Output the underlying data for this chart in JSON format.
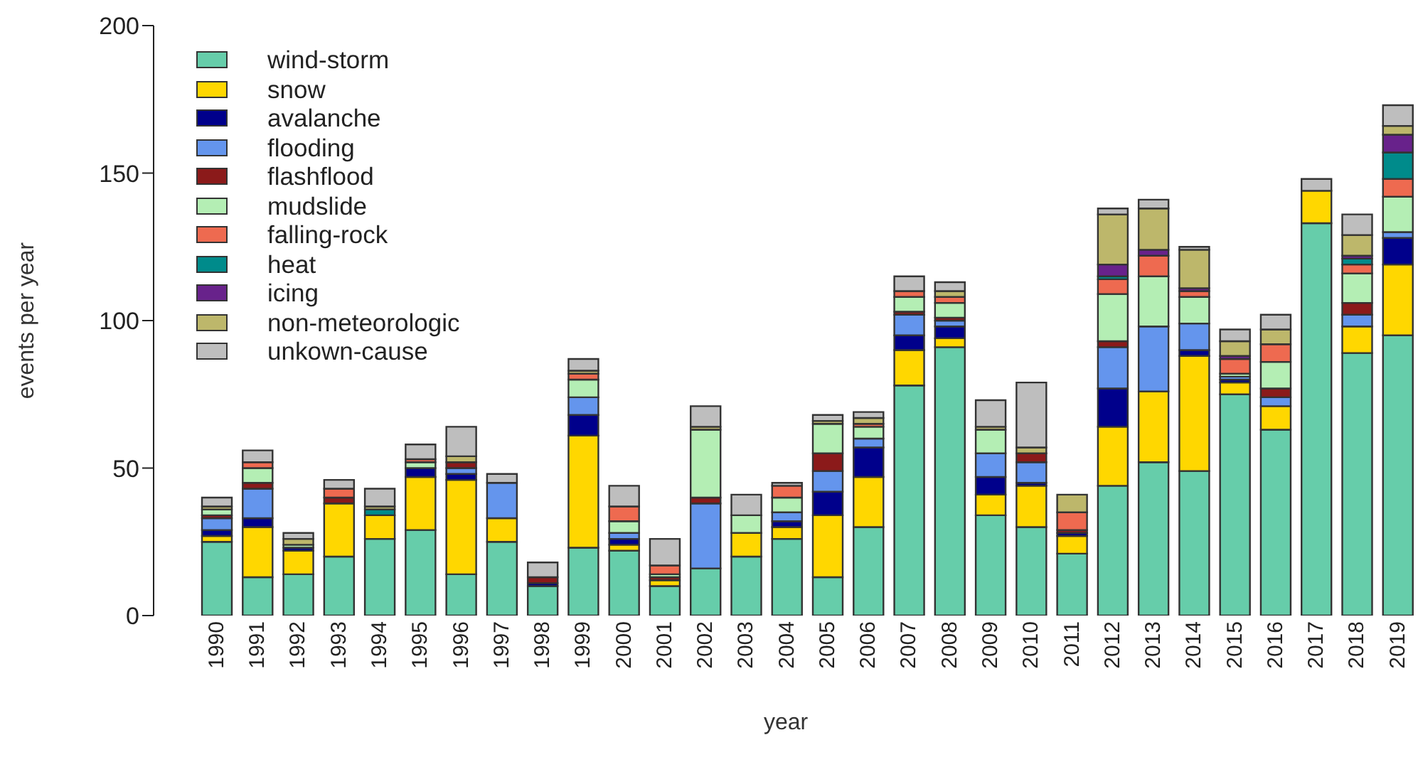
{
  "chart_data": {
    "type": "bar",
    "stacked": true,
    "xlabel": "year",
    "ylabel": "events per year",
    "categories": [
      "1990",
      "1991",
      "1992",
      "1993",
      "1994",
      "1995",
      "1996",
      "1997",
      "1998",
      "1999",
      "2000",
      "2001",
      "2002",
      "2003",
      "2004",
      "2005",
      "2006",
      "2007",
      "2008",
      "2009",
      "2010",
      "2011",
      "2012",
      "2013",
      "2014",
      "2015",
      "2016",
      "2017",
      "2018",
      "2019"
    ],
    "series": [
      {
        "name": "wind-storm",
        "color": "#66cdaa",
        "values": [
          25,
          13,
          14,
          20,
          26,
          29,
          14,
          25,
          10,
          23,
          22,
          10,
          16,
          20,
          26,
          13,
          30,
          78,
          91,
          34,
          30,
          21,
          44,
          52,
          49,
          75,
          63,
          133,
          89,
          95
        ]
      },
      {
        "name": "snow",
        "color": "#ffd700",
        "values": [
          2,
          17,
          8,
          18,
          8,
          18,
          32,
          8,
          0,
          38,
          2,
          2,
          0,
          8,
          4,
          21,
          17,
          12,
          3,
          7,
          14,
          6,
          20,
          24,
          39,
          4,
          8,
          11,
          9,
          24
        ]
      },
      {
        "name": "avalanche",
        "color": "#00008b",
        "values": [
          2,
          3,
          1,
          0,
          0,
          3,
          2,
          0,
          1,
          7,
          2,
          0,
          0,
          0,
          2,
          8,
          10,
          5,
          4,
          6,
          1,
          1,
          13,
          0,
          2,
          1,
          0,
          0,
          0,
          9
        ]
      },
      {
        "name": "flooding",
        "color": "#6495ed",
        "values": [
          4,
          10,
          0,
          0,
          0,
          0,
          2,
          12,
          0,
          6,
          2,
          0,
          22,
          0,
          3,
          7,
          3,
          7,
          2,
          8,
          7,
          0,
          14,
          22,
          9,
          1,
          3,
          0,
          4,
          2
        ]
      },
      {
        "name": "flashflood",
        "color": "#8b1a1a",
        "values": [
          1,
          2,
          0,
          2,
          0,
          0,
          2,
          0,
          2,
          0,
          0,
          1,
          2,
          0,
          0,
          6,
          0,
          1,
          1,
          0,
          3,
          1,
          2,
          0,
          0,
          0,
          3,
          0,
          4,
          0
        ]
      },
      {
        "name": "mudslide",
        "color": "#b4eeb4",
        "values": [
          2,
          5,
          1,
          0,
          0,
          2,
          0,
          0,
          0,
          6,
          4,
          1,
          23,
          6,
          5,
          10,
          4,
          5,
          5,
          8,
          0,
          0,
          16,
          17,
          9,
          1,
          9,
          0,
          10,
          12
        ]
      },
      {
        "name": "falling-rock",
        "color": "#ee6a50",
        "values": [
          0,
          2,
          0,
          3,
          0,
          1,
          0,
          0,
          0,
          2,
          5,
          3,
          0,
          0,
          4,
          0,
          1,
          2,
          2,
          0,
          0,
          6,
          5,
          7,
          2,
          5,
          6,
          0,
          3,
          6
        ]
      },
      {
        "name": "heat",
        "color": "#008b8b",
        "values": [
          0,
          0,
          0,
          0,
          2,
          0,
          0,
          0,
          0,
          0,
          0,
          0,
          0,
          0,
          0,
          0,
          0,
          0,
          0,
          0,
          0,
          0,
          1,
          0,
          0,
          0,
          0,
          0,
          2,
          9
        ]
      },
      {
        "name": "icing",
        "color": "#68228b",
        "values": [
          0,
          0,
          0,
          0,
          0,
          0,
          0,
          0,
          0,
          0,
          0,
          0,
          0,
          0,
          0,
          0,
          0,
          0,
          0,
          0,
          0,
          0,
          4,
          2,
          1,
          1,
          0,
          0,
          1,
          6
        ]
      },
      {
        "name": "non-meteorologic",
        "color": "#bdb76b",
        "values": [
          1,
          0,
          2,
          0,
          1,
          0,
          2,
          0,
          0,
          1,
          0,
          0,
          1,
          0,
          0,
          1,
          2,
          0,
          2,
          1,
          2,
          6,
          17,
          14,
          13,
          5,
          5,
          0,
          7,
          3
        ]
      },
      {
        "name": "unkown-cause",
        "color": "#bebebe",
        "values": [
          3,
          4,
          2,
          3,
          6,
          5,
          10,
          3,
          5,
          4,
          7,
          9,
          7,
          7,
          1,
          2,
          2,
          5,
          3,
          9,
          22,
          0,
          2,
          3,
          1,
          4,
          5,
          4,
          7,
          7
        ]
      }
    ],
    "ylim": [
      0,
      200
    ],
    "yticks": [
      0,
      50,
      100,
      150,
      200
    ],
    "grid": false,
    "legend": "top left"
  }
}
